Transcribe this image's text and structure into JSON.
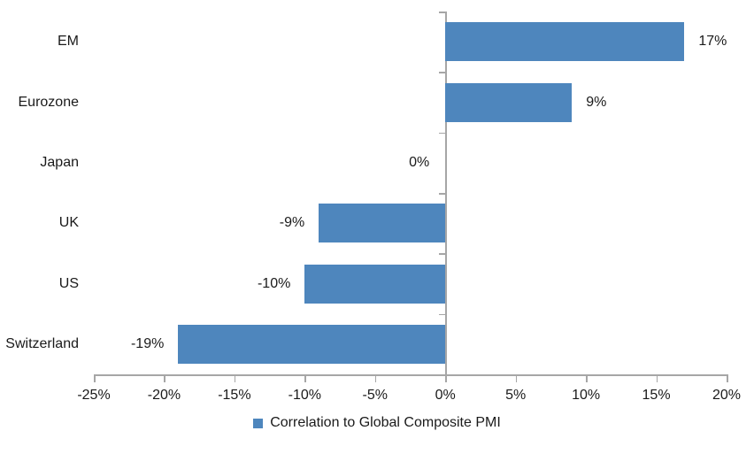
{
  "chart_data": {
    "type": "bar",
    "orientation": "horizontal",
    "title": "",
    "xlabel": "",
    "ylabel": "",
    "categories": [
      "EM",
      "Eurozone",
      "Japan",
      "UK",
      "US",
      "Switzerland"
    ],
    "values": [
      17,
      9,
      0,
      -9,
      -10,
      -19
    ],
    "value_labels": [
      "17%",
      "9%",
      "0%",
      "-9%",
      "-10%",
      "-19%"
    ],
    "xlim": [
      -25,
      20
    ],
    "x_ticks": [
      -25,
      -20,
      -15,
      -10,
      -5,
      0,
      5,
      10,
      15,
      20
    ],
    "x_tick_labels": [
      "-25%",
      "-20%",
      "-15%",
      "-10%",
      "-5%",
      "0%",
      "5%",
      "10%",
      "15%",
      "20%"
    ],
    "grid": false,
    "legend": {
      "position": "bottom-center",
      "entries": [
        "Correlation to Global Composite PMI"
      ]
    },
    "colors": {
      "bar": "#4E86BD",
      "axis": "#A6A6A6",
      "text": "#1A1A1A"
    }
  }
}
